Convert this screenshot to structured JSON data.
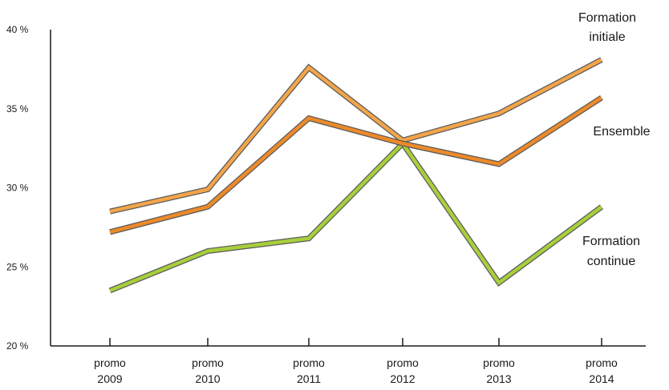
{
  "chart_data": {
    "type": "line",
    "categories": [
      [
        "promo",
        "2009"
      ],
      [
        "promo",
        "2010"
      ],
      [
        "promo",
        "2011"
      ],
      [
        "promo",
        "2012"
      ],
      [
        "promo",
        "2013"
      ],
      [
        "promo",
        "2014"
      ]
    ],
    "yticks": [
      "20 %",
      "25 %",
      "30 %",
      "35 %",
      "40 %"
    ],
    "ylim": [
      20,
      40
    ],
    "grid": false,
    "series": [
      {
        "name": [
          "Formation",
          "initiale"
        ],
        "values": [
          28.5,
          29.9,
          37.6,
          33.0,
          34.7,
          38.1
        ],
        "color": "#F3A54A"
      },
      {
        "name": [
          "Ensemble"
        ],
        "values": [
          27.2,
          28.8,
          34.4,
          32.8,
          31.5,
          35.7
        ],
        "color": "#EC8A2A"
      },
      {
        "name": [
          "Formation",
          "continue"
        ],
        "values": [
          23.5,
          26.0,
          26.8,
          32.8,
          24.0,
          28.8
        ],
        "color": "#A7CF3C"
      }
    ]
  }
}
